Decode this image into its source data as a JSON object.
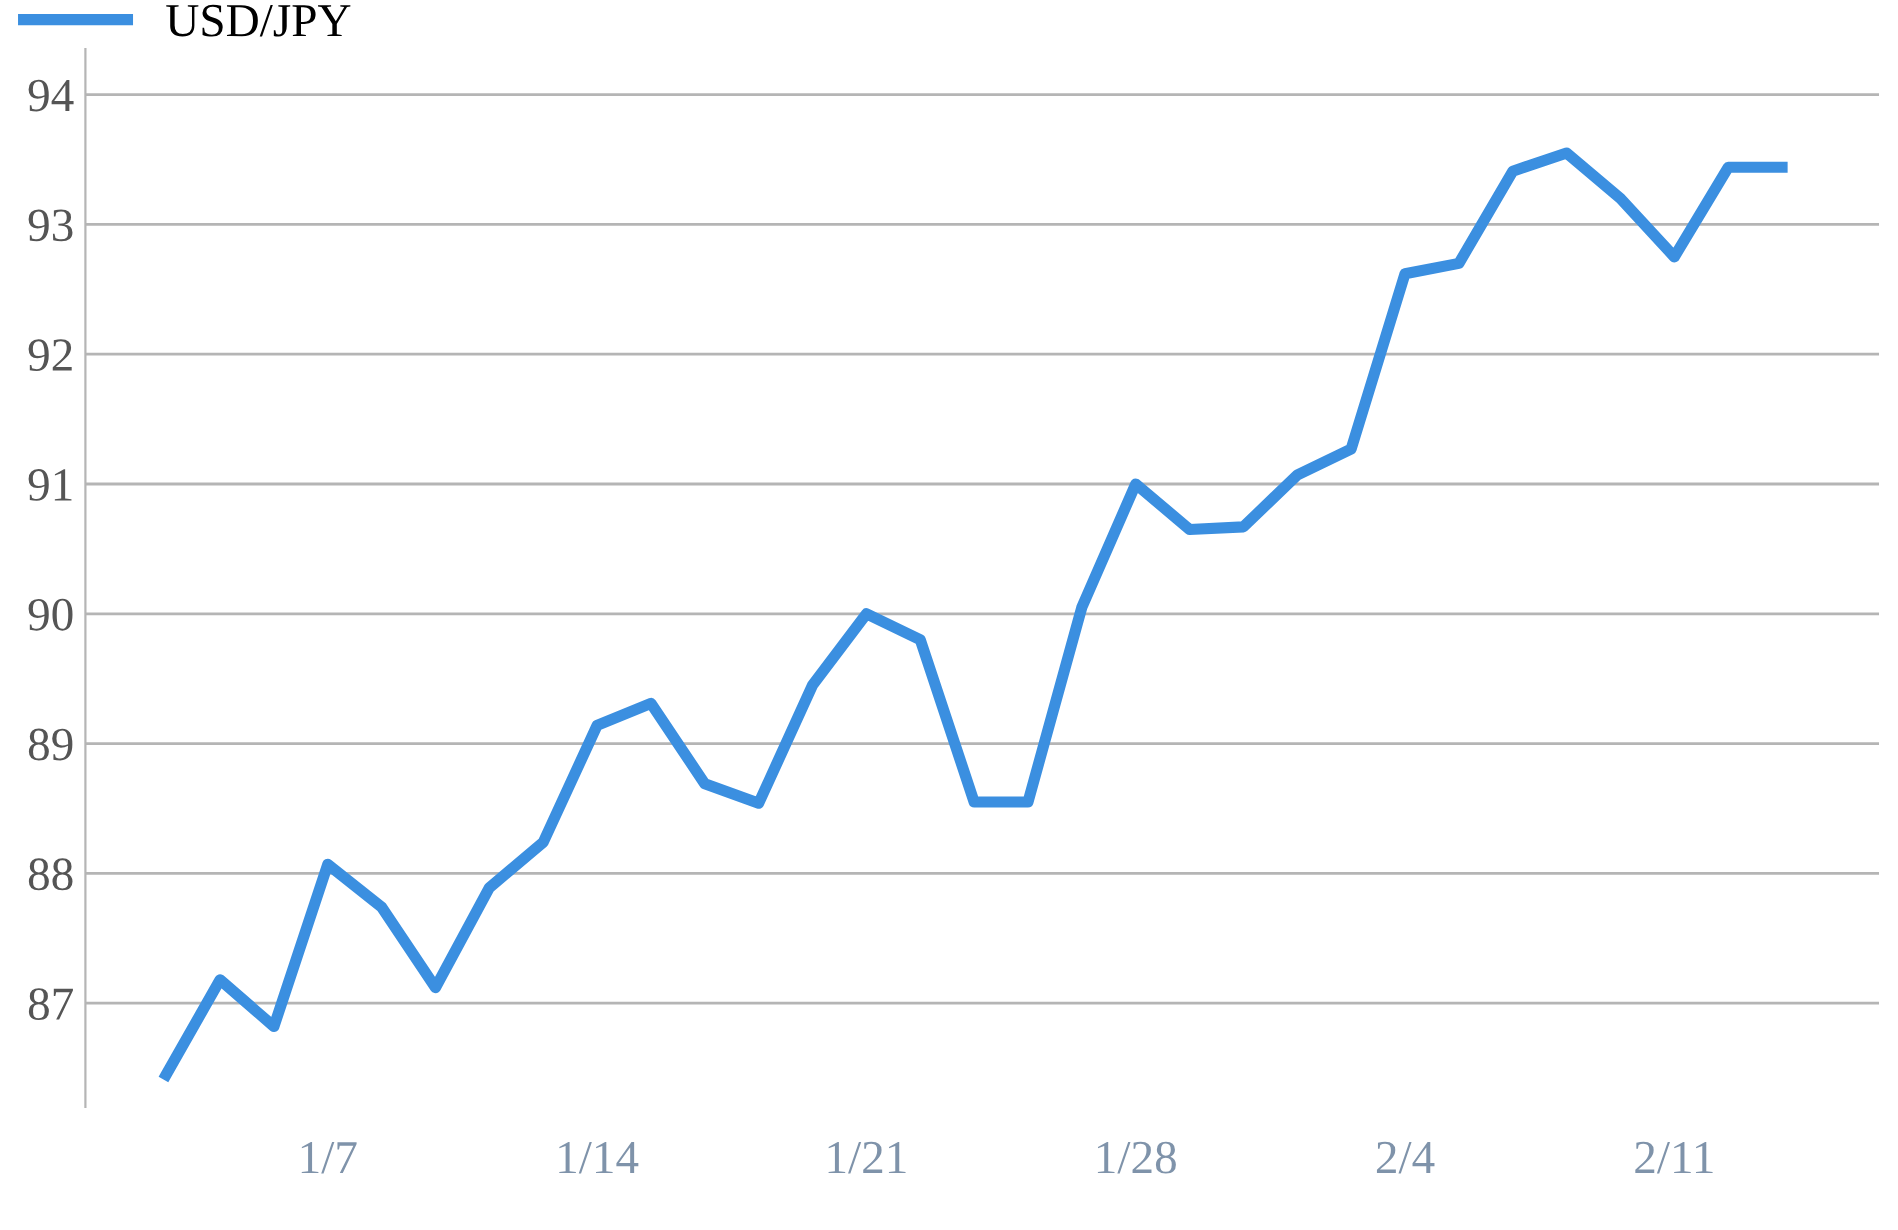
{
  "chart_data": {
    "type": "line",
    "categories": [
      null,
      null,
      null,
      "1/7",
      null,
      null,
      null,
      null,
      "1/14",
      null,
      null,
      null,
      null,
      "1/21",
      null,
      null,
      null,
      null,
      "1/28",
      null,
      null,
      null,
      null,
      "2/4",
      null,
      null,
      null,
      null,
      "2/11",
      null,
      null
    ],
    "series": [
      {
        "name": "USD/JPY",
        "color": "#3b8fe0",
        "values": [
          86.45,
          87.18,
          86.82,
          88.07,
          87.74,
          87.12,
          87.89,
          88.24,
          89.14,
          89.31,
          88.69,
          88.54,
          89.45,
          90.0,
          89.8,
          88.55,
          88.55,
          90.05,
          91.0,
          90.65,
          90.67,
          91.07,
          91.27,
          92.62,
          92.7,
          93.41,
          93.55,
          93.2,
          92.75,
          93.44,
          93.44
        ]
      }
    ],
    "ylim": [
      86.2,
      94.35
    ],
    "yticks": [
      87,
      88,
      89,
      90,
      91,
      92,
      93,
      94
    ],
    "grid": "y",
    "legend": "top left",
    "marker": "none",
    "line_style": "solid"
  }
}
